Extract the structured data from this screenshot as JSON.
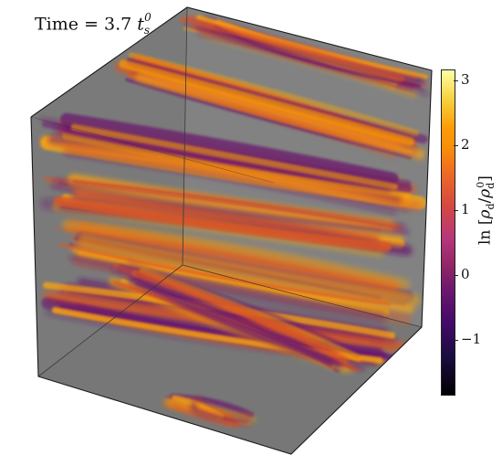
{
  "annotation": {
    "time_prefix": "Time = 3.7 ",
    "time_var": "t",
    "time_sub": "s",
    "time_sup": "0"
  },
  "colorbar": {
    "ticks": [
      "3",
      "2",
      "1",
      "0",
      "−1"
    ],
    "tick_values": [
      3,
      2,
      1,
      0,
      -1
    ],
    "range": [
      -1.85,
      3.15
    ],
    "title_prefix": "ln [",
    "title_var": "ρ",
    "title_sub": "d",
    "title_slash": "/",
    "title_var2": "ρ",
    "title_sub2": "d",
    "title_sup2": "0",
    "title_suffix": "]",
    "colormap": "inferno"
  },
  "colors": {
    "cube_face": "#7d7d7d",
    "cube_face_dark": "#6f6f6f",
    "edge": "#1a1a1a",
    "filament_hot": "#fba40a",
    "filament_mid": "#e0571f",
    "filament_cool": "#6a176e"
  }
}
